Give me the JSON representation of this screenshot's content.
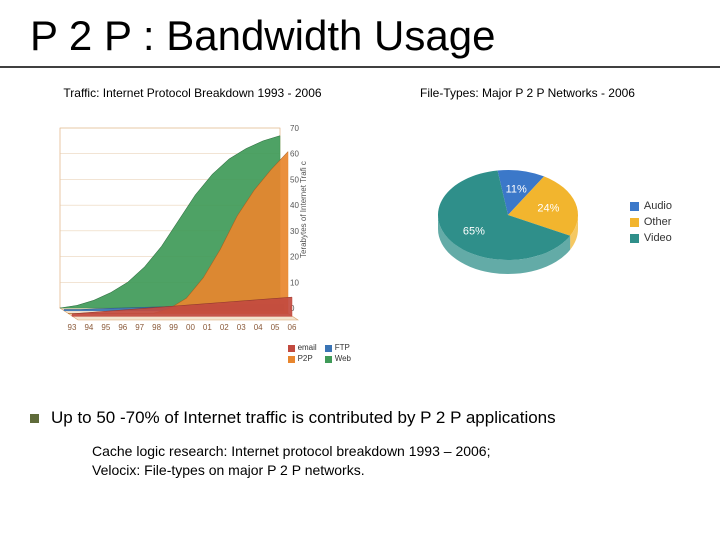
{
  "title": "P 2 P : Bandwidth Usage",
  "area_chart": {
    "caption": "Traffic: Internet Protocol Breakdown 1993 - 2006",
    "type": "area-3d",
    "background_color": "#ffffff",
    "axis_color": "#d9a26a",
    "grid_color": "#e6c9a8",
    "ylabel": "Terabytes of Internet Trafi c",
    "ylim": [
      0,
      70
    ],
    "yticks": [
      0,
      10,
      20,
      30,
      40,
      50,
      60,
      70
    ],
    "x_categories": [
      "93",
      "94",
      "95",
      "96",
      "97",
      "98",
      "99",
      "00",
      "01",
      "02",
      "03",
      "04",
      "05",
      "06"
    ],
    "series": [
      {
        "key": "email",
        "label": "email",
        "color": "#c24a3f",
        "values": [
          1,
          1.5,
          2,
          2.5,
          3,
          3.5,
          4,
          4.5,
          5,
          5.5,
          6,
          6.5,
          7,
          7.5
        ]
      },
      {
        "key": "p2p",
        "label": "P2P",
        "color": "#e8862e",
        "values": [
          0,
          0,
          0,
          0,
          0,
          0,
          2,
          6,
          14,
          25,
          38,
          48,
          56,
          63
        ]
      },
      {
        "key": "ftp",
        "label": "FTP",
        "color": "#3a74b5",
        "values": [
          0.5,
          0.5,
          0.8,
          1,
          1.2,
          1.4,
          1.6,
          1.8,
          2,
          2.1,
          2.2,
          2.3,
          2.4,
          2.5
        ]
      },
      {
        "key": "web",
        "label": "Web",
        "color": "#3f9a58",
        "values": [
          0,
          1,
          3,
          6,
          10,
          16,
          24,
          34,
          44,
          52,
          58,
          62,
          65,
          67
        ]
      }
    ],
    "legend": [
      {
        "label": "email",
        "color": "#c24a3f"
      },
      {
        "label": "FTP",
        "color": "#3a74b5"
      },
      {
        "label": "P2P",
        "color": "#e8862e"
      },
      {
        "label": "Web",
        "color": "#3f9a58"
      }
    ],
    "tick_fontsize": 8
  },
  "pie_chart": {
    "caption": "File-Types:  Major P 2 P Networks - 2006",
    "type": "pie-3d",
    "background_color": "#ffffff",
    "slices": [
      {
        "key": "audio",
        "label": "Audio",
        "value": 11,
        "display": "11%",
        "color": "#3b78c9"
      },
      {
        "key": "other",
        "label": "Other",
        "value": 24,
        "display": "24%",
        "color": "#f2b52e"
      },
      {
        "key": "video",
        "label": "Video",
        "value": 65,
        "display": "65%",
        "color": "#2f8f8a"
      }
    ],
    "label_color": "#ffffff",
    "label_fontsize": 11,
    "legend_fontsize": 11
  },
  "bullet": "Up to 50 -70% of Internet traffic is contributed by P 2 P applications",
  "footnote_line1": "Cache logic research: Internet protocol breakdown 1993 – 2006;",
  "footnote_line2": "Velocix:  File-types on major P 2 P networks.",
  "colors": {
    "underline": "#404040",
    "bullet_square": "#5f6b3a"
  }
}
